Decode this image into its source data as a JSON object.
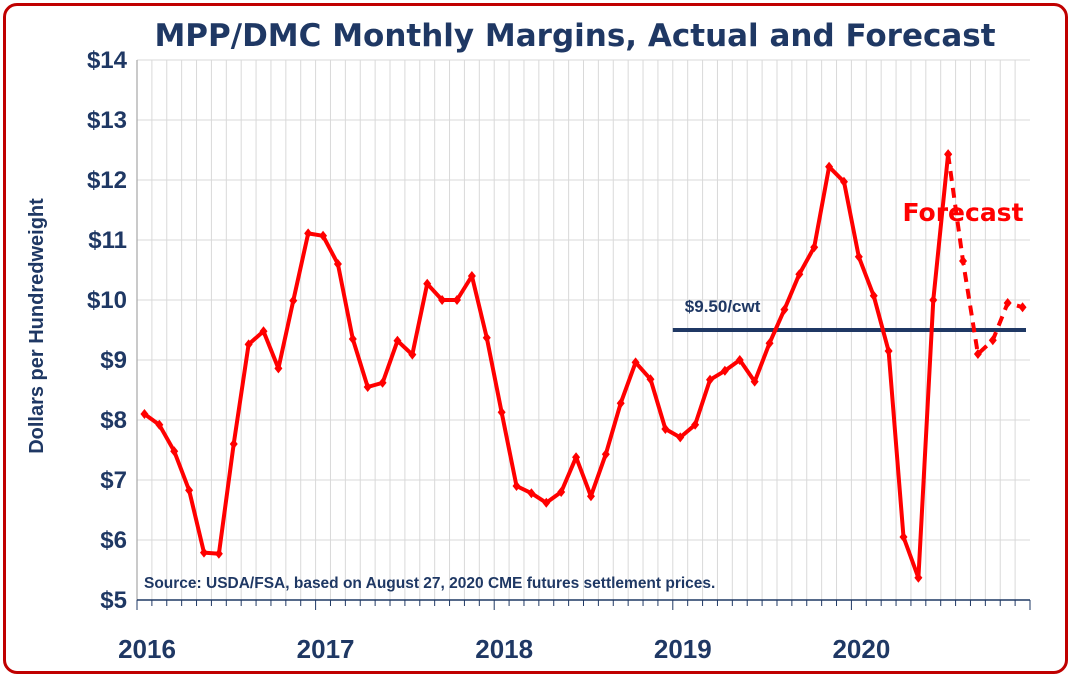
{
  "chart_data": {
    "type": "line",
    "title": "MPP/DMC Monthly Margins, Actual and Forecast",
    "ylabel": "Dollars per Hundredweight",
    "xlabel": "",
    "ylim": [
      5,
      14
    ],
    "y_ticks": [
      "$5",
      "$6",
      "$7",
      "$8",
      "$9",
      "$10",
      "$11",
      "$12",
      "$13",
      "$14"
    ],
    "x_ticks": [
      "2016",
      "2017",
      "2018",
      "2019",
      "2020"
    ],
    "grid": true,
    "series": [
      {
        "role": "actual",
        "color": "#ff0000",
        "style": "solid",
        "x": [
          "2016-01",
          "2016-02",
          "2016-03",
          "2016-04",
          "2016-05",
          "2016-06",
          "2016-07",
          "2016-08",
          "2016-09",
          "2016-10",
          "2016-11",
          "2016-12",
          "2017-01",
          "2017-02",
          "2017-03",
          "2017-04",
          "2017-05",
          "2017-06",
          "2017-07",
          "2017-08",
          "2017-09",
          "2017-10",
          "2017-11",
          "2017-12",
          "2018-01",
          "2018-02",
          "2018-03",
          "2018-04",
          "2018-05",
          "2018-06",
          "2018-07",
          "2018-08",
          "2018-09",
          "2018-10",
          "2018-11",
          "2018-12",
          "2019-01",
          "2019-02",
          "2019-03",
          "2019-04",
          "2019-05",
          "2019-06",
          "2019-07",
          "2019-08",
          "2019-09",
          "2019-10",
          "2019-11",
          "2019-12",
          "2020-01",
          "2020-02",
          "2020-03",
          "2020-04",
          "2020-05",
          "2020-06",
          "2020-07"
        ],
        "values": [
          8.1,
          7.92,
          7.48,
          6.83,
          5.79,
          5.77,
          7.6,
          9.26,
          9.48,
          8.86,
          9.99,
          11.11,
          11.07,
          10.6,
          9.35,
          8.55,
          8.62,
          9.32,
          9.09,
          10.27,
          10.0,
          10.0,
          10.4,
          9.37,
          8.13,
          6.9,
          6.78,
          6.62,
          6.8,
          7.38,
          6.73,
          7.43,
          8.28,
          8.96,
          8.68,
          7.85,
          7.71,
          7.92,
          8.67,
          8.82,
          9.0,
          8.64,
          9.28,
          9.84,
          10.43,
          10.88,
          12.22,
          11.97,
          10.72,
          10.07,
          9.15,
          6.05,
          5.37,
          10.0,
          12.43
        ]
      },
      {
        "role": "forecast",
        "color": "#ff0000",
        "style": "dashed",
        "x": [
          "2020-07",
          "2020-08",
          "2020-09",
          "2020-10",
          "2020-11",
          "2020-12"
        ],
        "values": [
          12.43,
          10.65,
          9.1,
          9.33,
          9.95,
          9.88
        ]
      }
    ],
    "reference_line": {
      "label": "$9.50/cwt",
      "value": 9.5,
      "x_start": "2019-01",
      "x_end": "2020-12",
      "color": "#1f3864"
    },
    "annotations": {
      "forecast": "Forecast",
      "source": "Source:  USDA/FSA, based on August 27, 2020 CME futures settlement prices."
    },
    "colors": {
      "border": "#c00000",
      "text": "#1f3864",
      "grid": "#d9d9d9",
      "series": "#ff0000"
    }
  }
}
